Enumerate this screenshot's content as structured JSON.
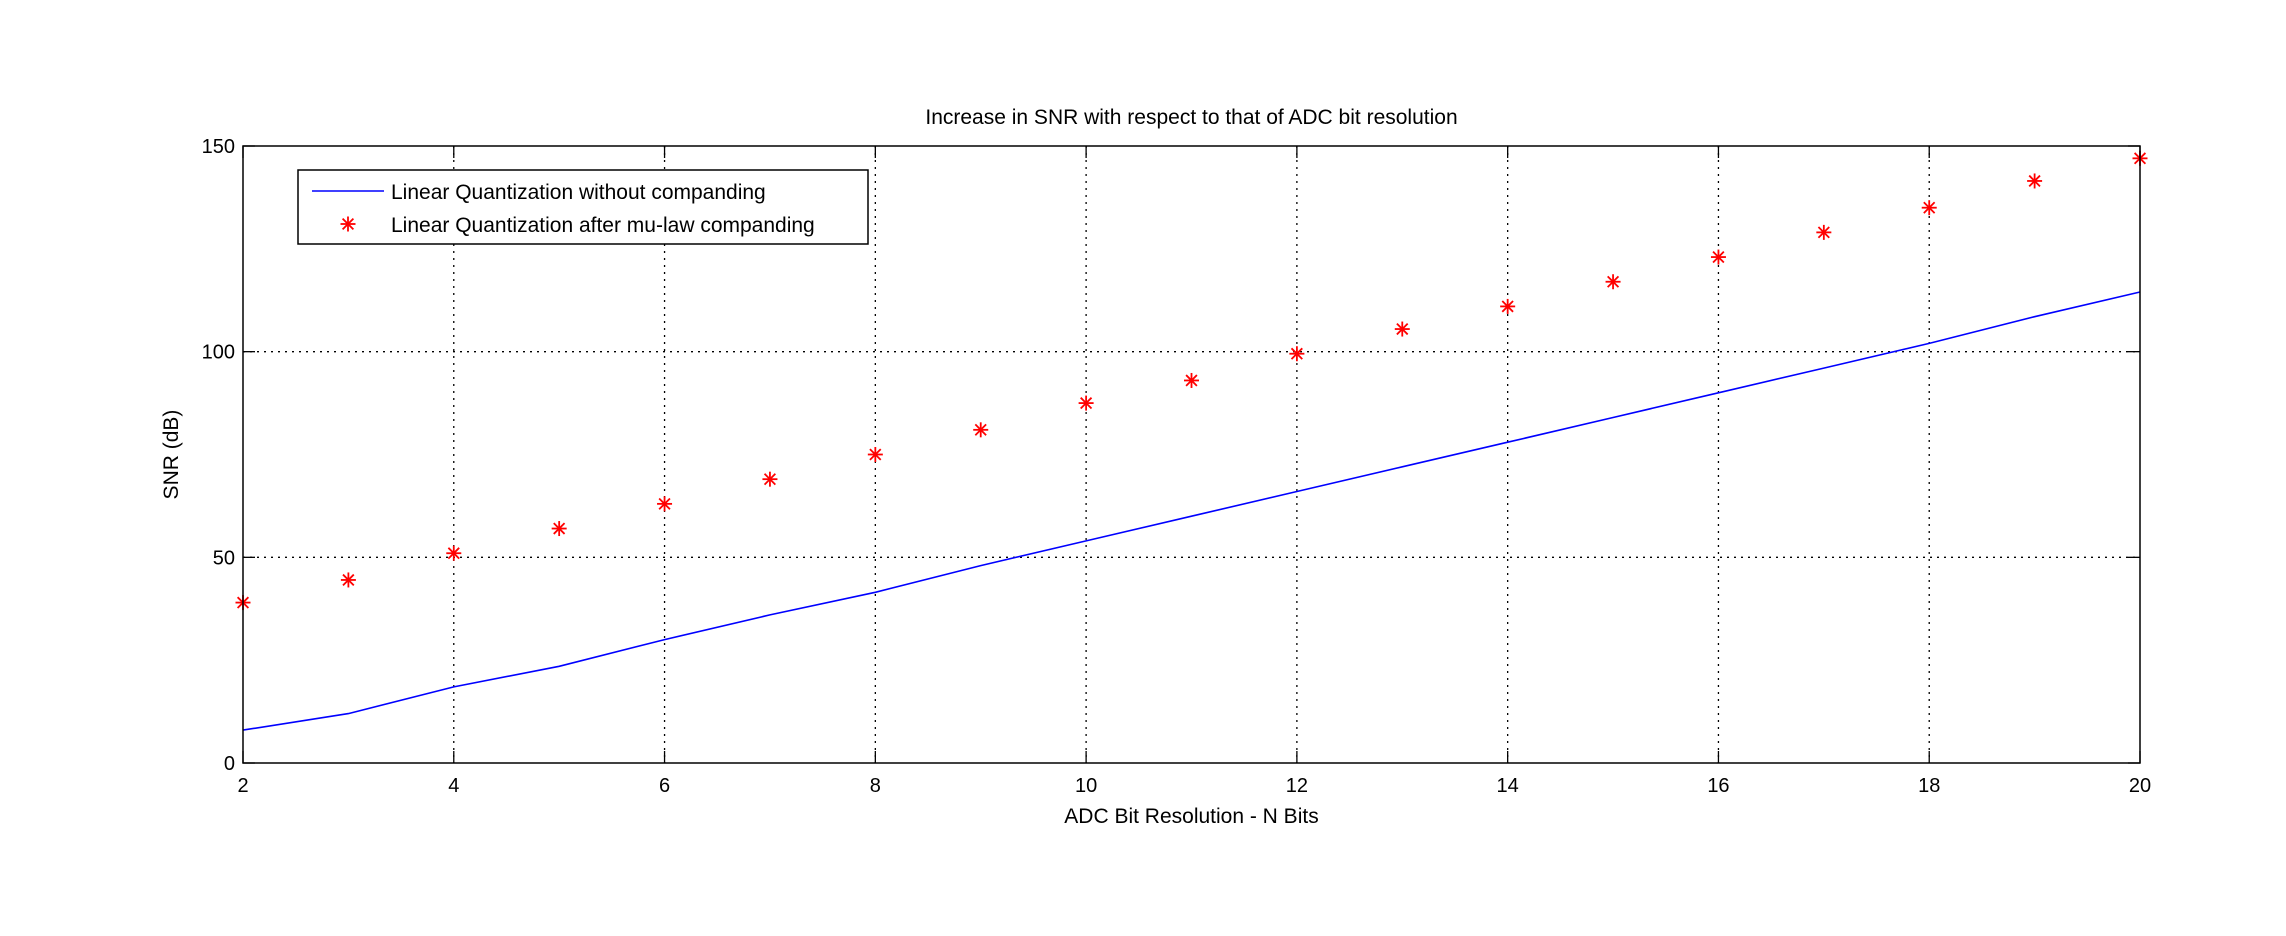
{
  "chart_data": {
    "type": "line",
    "title": "Increase in SNR with respect to that of ADC bit resolution",
    "xlabel": "ADC Bit Resolution - N Bits",
    "ylabel": "SNR (dB)",
    "xlim": [
      2,
      20
    ],
    "ylim": [
      0,
      150
    ],
    "xticks": [
      2,
      4,
      6,
      8,
      10,
      12,
      14,
      16,
      18,
      20
    ],
    "yticks": [
      0,
      50,
      100,
      150
    ],
    "grid": "dotted",
    "legend_position": "top-left",
    "series": [
      {
        "name": "Linear Quantization without companding",
        "style": "line",
        "color": "#0000ff",
        "x": [
          2,
          3,
          4,
          5,
          6,
          7,
          8,
          9,
          10,
          11,
          12,
          13,
          14,
          15,
          16,
          17,
          18,
          19,
          20
        ],
        "y": [
          8,
          12,
          18.5,
          23.5,
          30,
          36,
          41.5,
          48,
          54,
          60,
          66,
          72,
          78,
          84,
          90,
          96,
          102,
          108.5,
          114.5
        ]
      },
      {
        "name": "Linear Quantization after mu-law companding",
        "style": "marker",
        "marker": "*",
        "color": "#ff0000",
        "x": [
          2,
          3,
          4,
          5,
          6,
          7,
          8,
          9,
          10,
          11,
          12,
          13,
          14,
          15,
          16,
          17,
          18,
          19,
          20
        ],
        "y": [
          39,
          44.5,
          51,
          57,
          63,
          69,
          75,
          81,
          87.5,
          93,
          99.5,
          105.5,
          111,
          117,
          123,
          129,
          135,
          141.5,
          147
        ]
      }
    ]
  }
}
